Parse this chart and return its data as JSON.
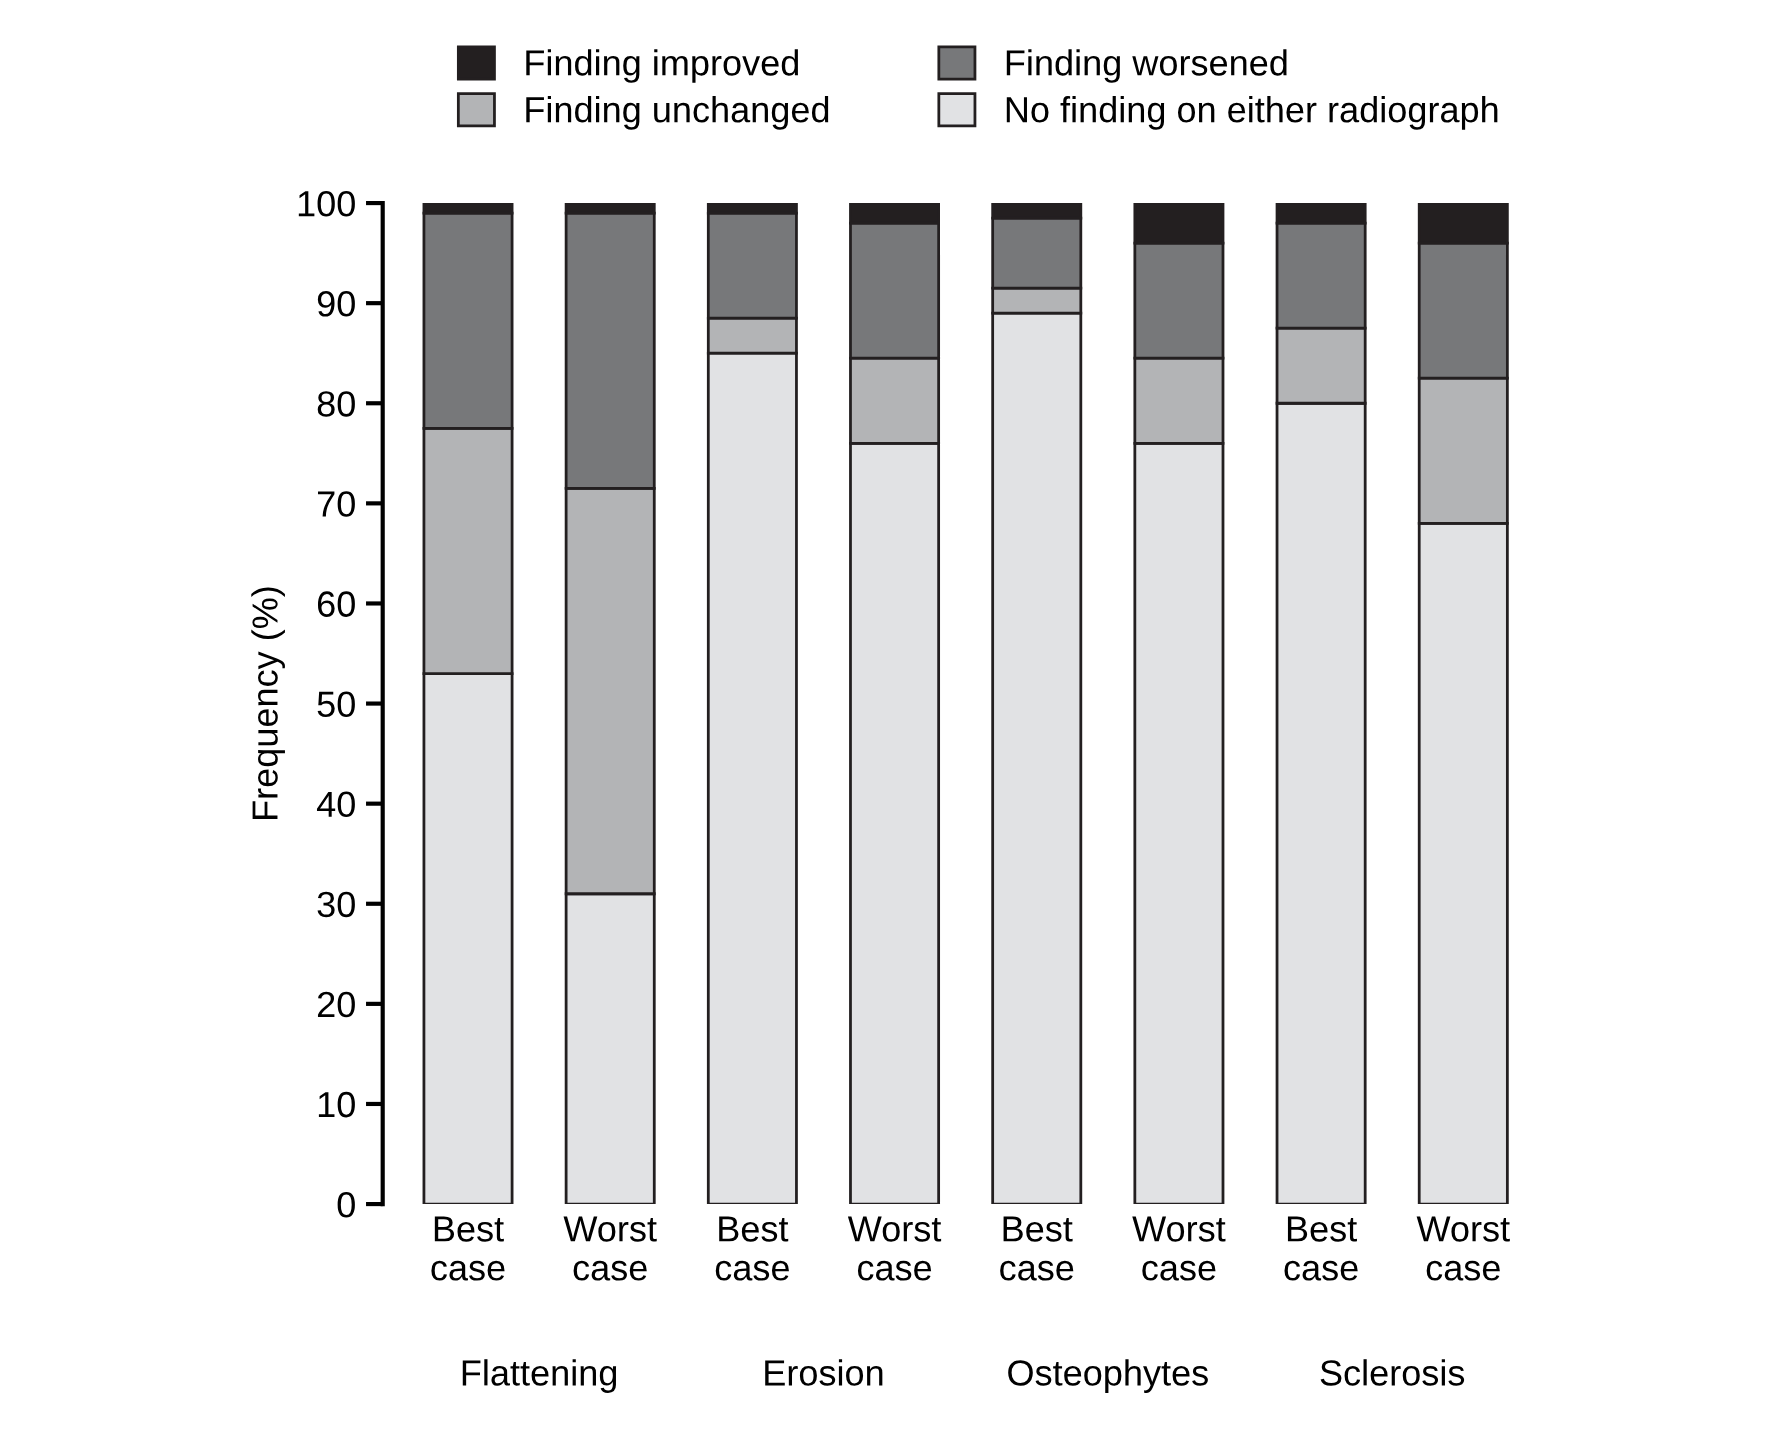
{
  "chart_data": {
    "type": "bar",
    "stacked": true,
    "ylabel": "Frequency (%)",
    "categories": [
      "Best case",
      "Worst case",
      "Best case",
      "Worst case",
      "Best case",
      "Worst case",
      "Best case",
      "Worst case"
    ],
    "series": [
      {
        "name": "No finding on either radiograph",
        "color": "#e1e2e4",
        "values": [
          53,
          31,
          85,
          76,
          89,
          76,
          80,
          68
        ]
      },
      {
        "name": "Finding unchanged",
        "color": "#b3b4b6",
        "values": [
          24.5,
          40.5,
          3.5,
          8.5,
          2.5,
          8.5,
          7.5,
          14.5
        ]
      },
      {
        "name": "Finding worsened",
        "color": "#77787a",
        "values": [
          21.5,
          27.5,
          10.5,
          13.5,
          7,
          11.5,
          10.5,
          13.5
        ]
      },
      {
        "name": "Finding improved",
        "color": "#231f20",
        "values": [
          1,
          1,
          1,
          2,
          1.5,
          4,
          2,
          4
        ]
      }
    ],
    "annotations": [
      "Flattening",
      "Erosion",
      "Osteophytes",
      "Sclerosis"
    ],
    "ylim": [
      0,
      100
    ],
    "yticks": [
      0,
      10,
      20,
      30,
      40,
      50,
      60,
      70,
      80,
      90,
      100
    ],
    "legend": "top"
  }
}
